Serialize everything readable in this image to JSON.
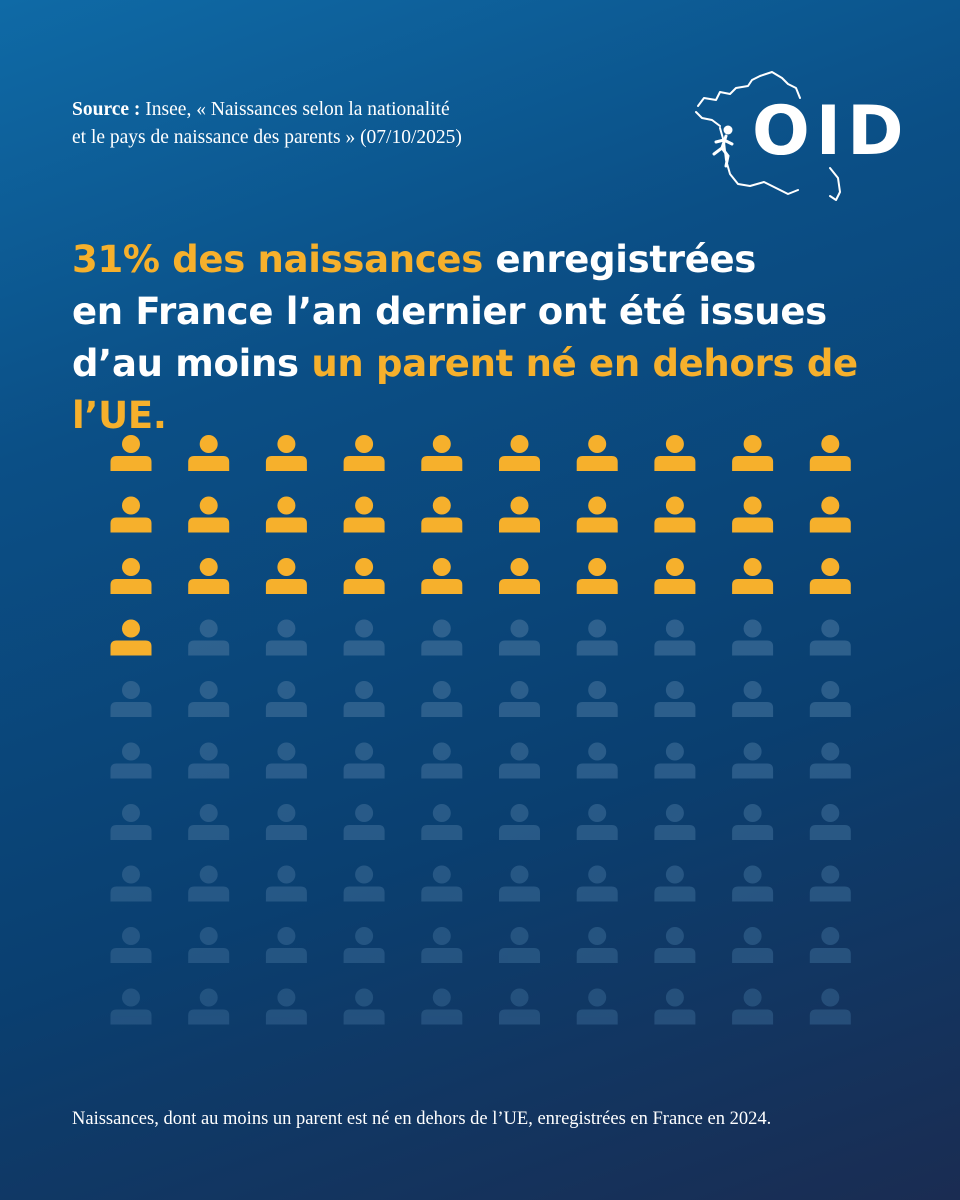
{
  "source": {
    "label": "Source :",
    "line1": "Insee, « Naissances selon la nationalité",
    "line2": "et le pays de naissance des parents » (07/10/2025)"
  },
  "logo": {
    "text": "OID"
  },
  "headline": {
    "l1_highlight": "31% des naissances",
    "l1_rest": " enregistrées",
    "l2": "en France l’an dernier ont été issues",
    "l3_start": "d’au moins ",
    "l3_highlight": "un parent né en dehors de l’UE."
  },
  "caption": "Naissances, dont au moins un parent est né en dehors de l’UE, enregistrées en France en 2024.",
  "colors": {
    "highlight": "#f6b02c",
    "inactive": "#3a6a95",
    "text": "#ffffff"
  },
  "chart_data": {
    "type": "waffle",
    "icon": "person-icon",
    "total": 100,
    "highlighted": 31,
    "rows": 10,
    "columns": 10
  }
}
